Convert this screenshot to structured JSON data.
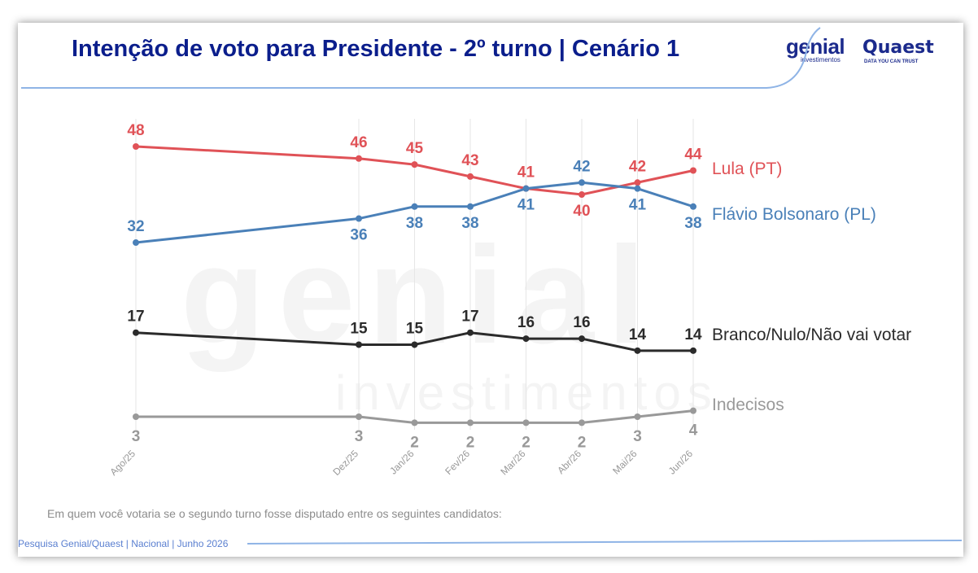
{
  "title": "Intenção de voto para Presidente - 2º turno | Cenário 1",
  "logos": {
    "genial": "genial",
    "genial_sub": "investimentos",
    "quaest": "Quaest",
    "quaest_tag": "DATA YOU CAN TRUST"
  },
  "question": "Em quem você votaria se o segundo turno fosse disputado entre os seguintes candidatos:",
  "source": "Pesquisa Genial/Quaest | Nacional | Junho 2026",
  "colors": {
    "title": "#0b1e8c",
    "lula": "#e05257",
    "flavio": "#4a80b8",
    "branco": "#2b2b2b",
    "indecisos": "#999999",
    "accent_line": "#8fb4e6"
  },
  "chart_data": {
    "type": "line",
    "x": [
      "Ago/25",
      "Dez/25",
      "Jan/26",
      "Fev/26",
      "Mar/26",
      "Abr/26",
      "Mai/26",
      "Jun/26"
    ],
    "ylim": [
      0,
      50
    ],
    "grid": "vertical",
    "series": [
      {
        "name": "Lula (PT)",
        "key": "lula",
        "values": [
          48,
          46,
          45,
          43,
          41,
          40,
          42,
          44
        ]
      },
      {
        "name": "Flávio Bolsonaro (PL)",
        "key": "flavio",
        "values": [
          32,
          36,
          38,
          38,
          41,
          42,
          41,
          38
        ]
      },
      {
        "name": "Branco/Nulo/Não vai votar",
        "key": "branco",
        "values": [
          17,
          15,
          15,
          17,
          16,
          16,
          14,
          14
        ]
      },
      {
        "name": "Indecisos",
        "key": "indecisos",
        "values": [
          3,
          3,
          2,
          2,
          2,
          2,
          3,
          4
        ]
      }
    ]
  }
}
